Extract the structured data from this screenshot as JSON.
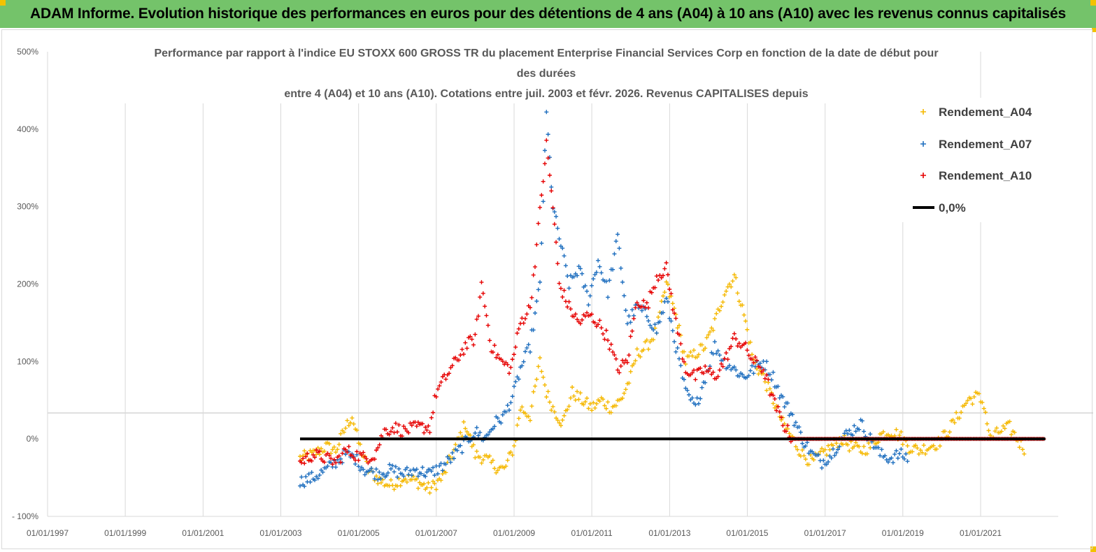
{
  "header": {
    "banner_title": "ADAM Informe. Evolution historique des performances en euros pour des détentions de 4 ans (A04) à 10 ans (A10) avec les revenus connus capitalisés",
    "banner_color": "#74c36a"
  },
  "chart_data": {
    "type": "scatter",
    "title_lines": [
      "Performance par rapport à l'indice EU STOXX 600 GROSS TR  du placement Enterprise Financial Services Corp en fonction de la date de début pour",
      "des durées",
      "entre 4 (A04) et 10 ans (A10). Cotations entre juil. 2003 et févr. 2026. Revenus CAPITALISES depuis"
    ],
    "xlabel": "",
    "ylabel": "",
    "x_range": [
      "1997-01-01",
      "2022-12-31"
    ],
    "y_range": [
      -100,
      500
    ],
    "y_ticks": [
      -100,
      0,
      100,
      200,
      300,
      400,
      500
    ],
    "y_tick_labels": [
      "- 100%",
      "0%",
      "100%",
      "200%",
      "300%",
      "400%",
      "500%"
    ],
    "x_tick_labels": [
      "01/01/1997",
      "01/01/1999",
      "01/01/2001",
      "01/01/2003",
      "01/01/2005",
      "01/01/2007",
      "01/01/2009",
      "01/01/2011",
      "01/01/2013",
      "01/01/2015",
      "01/01/2017",
      "01/01/2019",
      "01/01/2021"
    ],
    "grid": "vertical",
    "legend_position": "top-right",
    "series": [
      {
        "name": "Rendement_A04",
        "color": "#f5b800",
        "marker": "plus",
        "points": [
          [
            "2003-07-01",
            -25
          ],
          [
            "2003-11-01",
            -20
          ],
          [
            "2004-03-01",
            -10
          ],
          [
            "2004-06-01",
            -15
          ],
          [
            "2004-09-01",
            15
          ],
          [
            "2004-11-01",
            30
          ],
          [
            "2005-01-01",
            -5
          ],
          [
            "2005-04-01",
            -40
          ],
          [
            "2005-08-01",
            -55
          ],
          [
            "2005-11-01",
            -60
          ],
          [
            "2006-03-01",
            -50
          ],
          [
            "2006-07-01",
            -55
          ],
          [
            "2006-11-01",
            -65
          ],
          [
            "2007-03-01",
            -50
          ],
          [
            "2007-07-01",
            -10
          ],
          [
            "2007-10-01",
            20
          ],
          [
            "2008-01-01",
            -20
          ],
          [
            "2008-04-01",
            -25
          ],
          [
            "2008-07-01",
            -35
          ],
          [
            "2008-10-01",
            -40
          ],
          [
            "2009-01-01",
            -10
          ],
          [
            "2009-03-01",
            40
          ],
          [
            "2009-06-01",
            30
          ],
          [
            "2009-09-01",
            100
          ],
          [
            "2009-11-01",
            60
          ],
          [
            "2010-01-01",
            40
          ],
          [
            "2010-04-01",
            20
          ],
          [
            "2010-07-01",
            60
          ],
          [
            "2010-10-01",
            50
          ],
          [
            "2011-01-01",
            40
          ],
          [
            "2011-04-01",
            50
          ],
          [
            "2011-07-01",
            40
          ],
          [
            "2011-10-01",
            50
          ],
          [
            "2012-01-01",
            80
          ],
          [
            "2012-03-01",
            110
          ],
          [
            "2012-06-01",
            120
          ],
          [
            "2012-09-01",
            140
          ],
          [
            "2012-12-01",
            200
          ],
          [
            "2013-03-01",
            160
          ],
          [
            "2013-06-01",
            100
          ],
          [
            "2013-09-01",
            110
          ],
          [
            "2013-12-01",
            120
          ],
          [
            "2014-03-01",
            150
          ],
          [
            "2014-06-01",
            190
          ],
          [
            "2014-09-01",
            210
          ],
          [
            "2014-12-01",
            160
          ],
          [
            "2015-03-01",
            100
          ],
          [
            "2015-06-01",
            80
          ],
          [
            "2015-09-01",
            50
          ],
          [
            "2015-12-01",
            20
          ],
          [
            "2016-03-01",
            0
          ],
          [
            "2016-06-01",
            -20
          ],
          [
            "2016-09-01",
            -30
          ],
          [
            "2016-12-01",
            -20
          ],
          [
            "2017-03-01",
            -10
          ],
          [
            "2017-06-01",
            0
          ],
          [
            "2017-09-01",
            -10
          ],
          [
            "2017-12-01",
            -15
          ],
          [
            "2018-03-01",
            -10
          ],
          [
            "2018-06-01",
            5
          ],
          [
            "2018-09-01",
            10
          ],
          [
            "2018-12-01",
            5
          ],
          [
            "2019-03-01",
            -10
          ],
          [
            "2019-06-01",
            -15
          ],
          [
            "2019-09-01",
            -10
          ],
          [
            "2019-12-01",
            -5
          ],
          [
            "2020-03-01",
            10
          ],
          [
            "2020-06-01",
            30
          ],
          [
            "2020-09-01",
            50
          ],
          [
            "2020-12-01",
            55
          ],
          [
            "2021-02-01",
            45
          ],
          [
            "2021-04-01",
            0
          ],
          [
            "2021-07-01",
            10
          ],
          [
            "2021-10-01",
            15
          ],
          [
            "2022-01-01",
            -5
          ],
          [
            "2022-03-01",
            -15
          ]
        ]
      },
      {
        "name": "Rendement_A07",
        "color": "#1f6fbf",
        "marker": "plus",
        "points": [
          [
            "2003-07-01",
            -55
          ],
          [
            "2003-11-01",
            -50
          ],
          [
            "2004-03-01",
            -40
          ],
          [
            "2004-06-01",
            -30
          ],
          [
            "2004-09-01",
            -20
          ],
          [
            "2004-12-01",
            -25
          ],
          [
            "2005-03-01",
            -40
          ],
          [
            "2005-07-01",
            -45
          ],
          [
            "2005-11-01",
            -40
          ],
          [
            "2006-03-01",
            -45
          ],
          [
            "2006-07-01",
            -40
          ],
          [
            "2006-11-01",
            -45
          ],
          [
            "2007-03-01",
            -35
          ],
          [
            "2007-07-01",
            -20
          ],
          [
            "2007-10-01",
            -5
          ],
          [
            "2008-01-01",
            10
          ],
          [
            "2008-04-01",
            0
          ],
          [
            "2008-07-01",
            20
          ],
          [
            "2008-10-01",
            30
          ],
          [
            "2009-01-01",
            60
          ],
          [
            "2009-03-01",
            90
          ],
          [
            "2009-06-01",
            120
          ],
          [
            "2009-09-01",
            200
          ],
          [
            "2009-11-01",
            420
          ],
          [
            "2010-01-01",
            300
          ],
          [
            "2010-03-01",
            260
          ],
          [
            "2010-06-01",
            200
          ],
          [
            "2010-09-01",
            220
          ],
          [
            "2010-12-01",
            180
          ],
          [
            "2011-03-01",
            230
          ],
          [
            "2011-06-01",
            190
          ],
          [
            "2011-09-01",
            260
          ],
          [
            "2011-12-01",
            150
          ],
          [
            "2012-03-01",
            170
          ],
          [
            "2012-06-01",
            160
          ],
          [
            "2012-09-01",
            140
          ],
          [
            "2012-12-01",
            180
          ],
          [
            "2013-03-01",
            120
          ],
          [
            "2013-06-01",
            60
          ],
          [
            "2013-09-01",
            40
          ],
          [
            "2013-12-01",
            80
          ],
          [
            "2014-03-01",
            120
          ],
          [
            "2014-06-01",
            100
          ],
          [
            "2014-09-01",
            90
          ],
          [
            "2014-12-01",
            80
          ],
          [
            "2015-03-01",
            90
          ],
          [
            "2015-06-01",
            100
          ],
          [
            "2015-09-01",
            80
          ],
          [
            "2015-12-01",
            50
          ],
          [
            "2016-03-01",
            30
          ],
          [
            "2016-06-01",
            0
          ],
          [
            "2016-09-01",
            -20
          ],
          [
            "2016-12-01",
            -30
          ],
          [
            "2017-03-01",
            -20
          ],
          [
            "2017-06-01",
            0
          ],
          [
            "2017-09-01",
            10
          ],
          [
            "2017-12-01",
            20
          ],
          [
            "2018-03-01",
            0
          ],
          [
            "2018-06-01",
            -20
          ],
          [
            "2018-09-01",
            -25
          ],
          [
            "2018-12-01",
            -20
          ],
          [
            "2019-03-01",
            -25
          ]
        ]
      },
      {
        "name": "Rendement_A10",
        "color": "#e60000",
        "marker": "plus",
        "points": [
          [
            "2003-07-01",
            -30
          ],
          [
            "2003-11-01",
            -20
          ],
          [
            "2004-03-01",
            -25
          ],
          [
            "2004-06-01",
            -30
          ],
          [
            "2004-09-01",
            -15
          ],
          [
            "2004-12-01",
            -20
          ],
          [
            "2005-03-01",
            -25
          ],
          [
            "2005-06-01",
            -20
          ],
          [
            "2005-09-01",
            10
          ],
          [
            "2005-12-01",
            15
          ],
          [
            "2006-03-01",
            10
          ],
          [
            "2006-07-01",
            15
          ],
          [
            "2006-11-01",
            15
          ],
          [
            "2007-01-01",
            60
          ],
          [
            "2007-04-01",
            80
          ],
          [
            "2007-07-01",
            100
          ],
          [
            "2007-10-01",
            120
          ],
          [
            "2008-01-01",
            130
          ],
          [
            "2008-03-01",
            200
          ],
          [
            "2008-06-01",
            120
          ],
          [
            "2008-09-01",
            100
          ],
          [
            "2008-12-01",
            90
          ],
          [
            "2009-03-01",
            150
          ],
          [
            "2009-06-01",
            170
          ],
          [
            "2009-08-01",
            250
          ],
          [
            "2009-11-01",
            380
          ],
          [
            "2010-01-01",
            300
          ],
          [
            "2010-03-01",
            200
          ],
          [
            "2010-06-01",
            170
          ],
          [
            "2010-09-01",
            150
          ],
          [
            "2010-12-01",
            160
          ],
          [
            "2011-03-01",
            150
          ],
          [
            "2011-06-01",
            130
          ],
          [
            "2011-09-01",
            90
          ],
          [
            "2011-12-01",
            100
          ],
          [
            "2012-03-01",
            180
          ],
          [
            "2012-06-01",
            170
          ],
          [
            "2012-09-01",
            210
          ],
          [
            "2012-12-01",
            220
          ],
          [
            "2013-03-01",
            150
          ],
          [
            "2013-06-01",
            90
          ],
          [
            "2013-09-01",
            80
          ],
          [
            "2013-12-01",
            90
          ],
          [
            "2014-03-01",
            80
          ],
          [
            "2014-06-01",
            100
          ],
          [
            "2014-09-01",
            130
          ],
          [
            "2014-12-01",
            120
          ],
          [
            "2015-03-01",
            100
          ],
          [
            "2015-06-01",
            90
          ],
          [
            "2015-09-01",
            50
          ],
          [
            "2015-12-01",
            20
          ],
          [
            "2016-03-01",
            0
          ],
          [
            "2016-09-01",
            0
          ],
          [
            "2017-06-01",
            0
          ],
          [
            "2018-06-01",
            0
          ],
          [
            "2019-06-01",
            0
          ],
          [
            "2020-06-01",
            0
          ],
          [
            "2021-06-01",
            0
          ],
          [
            "2022-09-01",
            0
          ]
        ]
      },
      {
        "name": "0,0%",
        "color": "#000000",
        "marker": "line",
        "points": [
          [
            "2003-07-01",
            0
          ],
          [
            "2022-09-01",
            0
          ]
        ]
      }
    ]
  }
}
